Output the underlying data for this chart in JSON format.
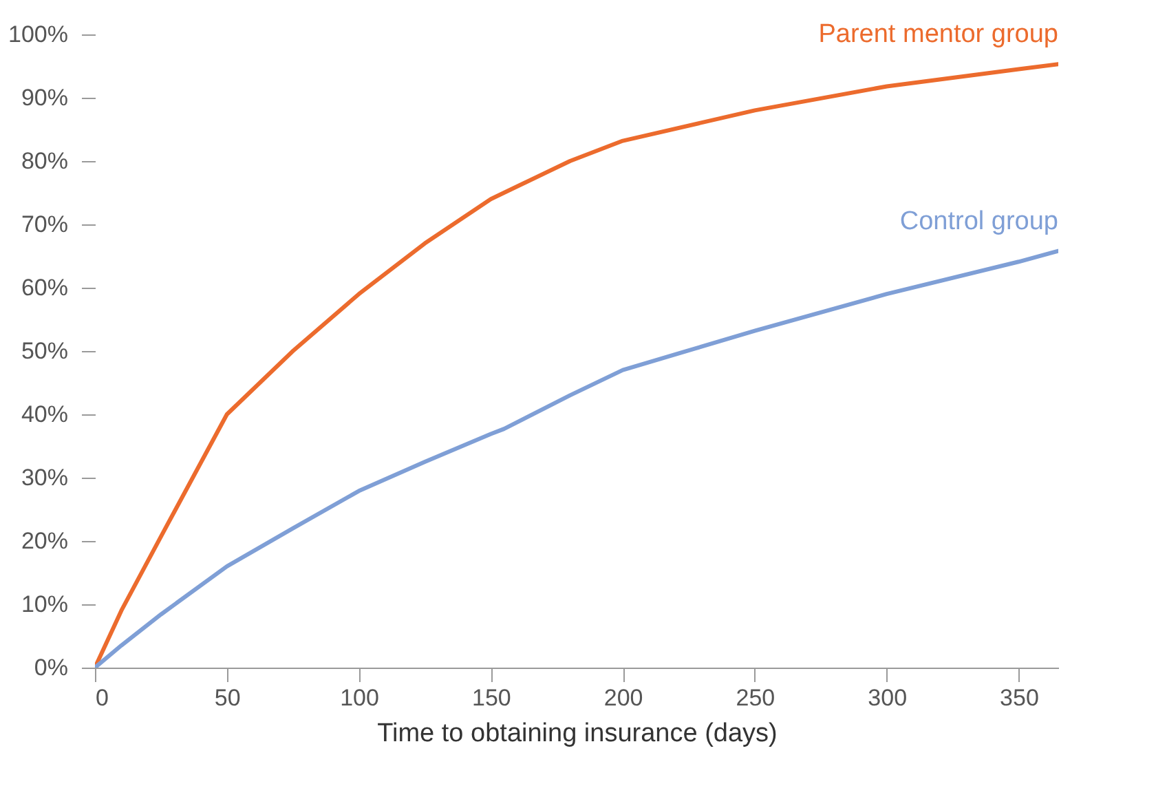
{
  "chart_data": {
    "type": "line",
    "xlabel": "Time to obtaining insurance (days)",
    "x": [
      0,
      10,
      25,
      50,
      75,
      100,
      125,
      150,
      155,
      180,
      200,
      250,
      300,
      350,
      365
    ],
    "xlim": [
      0,
      365
    ],
    "xticks": [
      0,
      50,
      100,
      150,
      200,
      250,
      300,
      350
    ],
    "ylim": [
      0,
      100
    ],
    "yticks": [
      {
        "value": 0,
        "label": "0%"
      },
      {
        "value": 10,
        "label": "10%"
      },
      {
        "value": 20,
        "label": "20%"
      },
      {
        "value": 30,
        "label": "30%"
      },
      {
        "value": 40,
        "label": "40%"
      },
      {
        "value": 50,
        "label": "50%"
      },
      {
        "value": 60,
        "label": "60%"
      },
      {
        "value": 70,
        "label": "70%"
      },
      {
        "value": 80,
        "label": "80%"
      },
      {
        "value": 90,
        "label": "90%"
      },
      {
        "value": 100,
        "label": "100%"
      }
    ],
    "grid": false,
    "legend": false,
    "marker": "none",
    "line_style": "solid",
    "series": [
      {
        "name": "Parent mentor group",
        "color": "#ec6b2d",
        "values": [
          0,
          9,
          20.7,
          40,
          50,
          59,
          67,
          74,
          75,
          80,
          83.2,
          88,
          91.8,
          94.5,
          95.3
        ]
      },
      {
        "name": "Control group",
        "color": "#7f9fd6",
        "values": [
          0,
          3.5,
          8.4,
          16,
          22,
          27.9,
          32.5,
          36.9,
          37.7,
          43,
          47,
          53.2,
          59,
          64.1,
          65.8
        ]
      }
    ]
  }
}
